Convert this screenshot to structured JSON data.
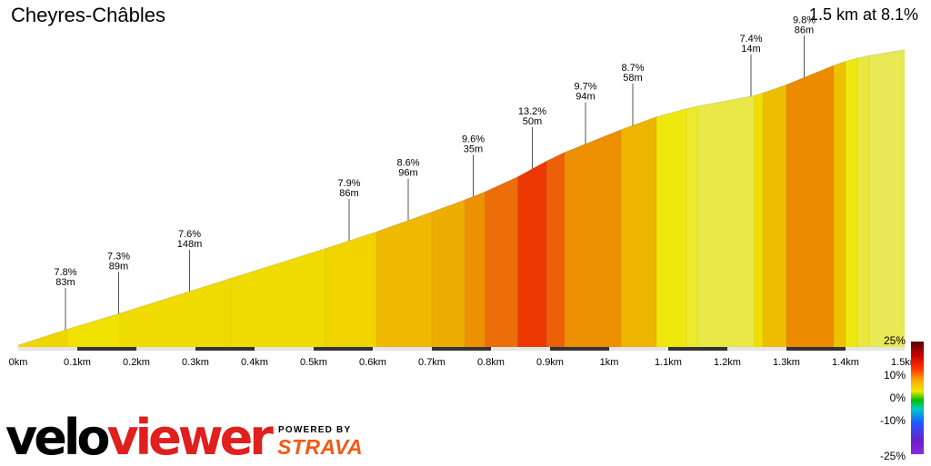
{
  "header": {
    "title": "Cheyres-Châbles",
    "summary": "1.5 km at 8.1%"
  },
  "branding": {
    "logo_part1": "velo",
    "logo_part2": "viewer",
    "powered_by": "POWERED BY",
    "partner": "STRAVA"
  },
  "chart_data": {
    "type": "area",
    "xlabel": "",
    "ylabel": "",
    "x_ticks": [
      "0km",
      "0.1km",
      "0.2km",
      "0.3km",
      "0.4km",
      "0.5km",
      "0.6km",
      "0.7km",
      "0.8km",
      "0.9km",
      "1km",
      "1.1km",
      "1.2km",
      "1.3km",
      "1.4km",
      "1.5km"
    ],
    "xlim_km": [
      0,
      1.5
    ],
    "elevation_start_m": 0,
    "segments_markers": [
      {
        "km": 0.08,
        "grade": "7.8%",
        "length": "83m"
      },
      {
        "km": 0.17,
        "grade": "7.3%",
        "length": "89m"
      },
      {
        "km": 0.29,
        "grade": "7.6%",
        "length": "148m"
      },
      {
        "km": 0.56,
        "grade": "7.9%",
        "length": "86m"
      },
      {
        "km": 0.66,
        "grade": "8.6%",
        "length": "96m"
      },
      {
        "km": 0.77,
        "grade": "9.6%",
        "length": "35m"
      },
      {
        "km": 0.87,
        "grade": "13.2%",
        "length": "50m"
      },
      {
        "km": 0.96,
        "grade": "9.7%",
        "length": "94m"
      },
      {
        "km": 1.04,
        "grade": "8.7%",
        "length": "58m"
      },
      {
        "km": 1.24,
        "grade": "7.4%",
        "length": "14m"
      },
      {
        "km": 1.33,
        "grade": "9.8%",
        "length": "86m"
      }
    ],
    "profile": [
      {
        "km": 0.0,
        "grade": 7.8
      },
      {
        "km": 0.083,
        "grade": 7.3
      },
      {
        "km": 0.172,
        "grade": 7.6
      },
      {
        "km": 0.36,
        "grade": 7.6
      },
      {
        "km": 0.52,
        "grade": 7.9
      },
      {
        "km": 0.606,
        "grade": 8.6
      },
      {
        "km": 0.7,
        "grade": 8.9
      },
      {
        "km": 0.755,
        "grade": 9.6
      },
      {
        "km": 0.79,
        "grade": 11.0
      },
      {
        "km": 0.845,
        "grade": 13.2
      },
      {
        "km": 0.895,
        "grade": 11.5
      },
      {
        "km": 0.925,
        "grade": 9.7
      },
      {
        "km": 1.02,
        "grade": 8.7
      },
      {
        "km": 1.08,
        "grade": 6.5
      },
      {
        "km": 1.13,
        "grade": 5.5
      },
      {
        "km": 1.15,
        "grade": 4.5
      },
      {
        "km": 1.245,
        "grade": 7.4
      },
      {
        "km": 1.26,
        "grade": 8.5
      },
      {
        "km": 1.3,
        "grade": 9.8
      },
      {
        "km": 1.38,
        "grade": 8.4
      },
      {
        "km": 1.4,
        "grade": 6.5
      },
      {
        "km": 1.42,
        "grade": 5.0
      },
      {
        "km": 1.44,
        "grade": 4.0
      },
      {
        "km": 1.5,
        "grade": null
      }
    ],
    "legend": {
      "labels": [
        "25%",
        "10%",
        "0%",
        "-10%",
        "-25%"
      ],
      "values": [
        25,
        10,
        0,
        -10,
        -25
      ],
      "placement": "bottom-right"
    }
  },
  "colors": {
    "axis_bar": "#e6e6e6",
    "km_dark": "#333333",
    "brand_red": "#e01f1f",
    "strava_orange": "#f25a17"
  }
}
